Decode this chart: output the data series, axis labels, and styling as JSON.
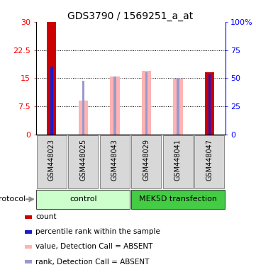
{
  "title": "GDS3790 / 1569251_a_at",
  "samples": [
    "GSM448023",
    "GSM448025",
    "GSM448043",
    "GSM448029",
    "GSM448041",
    "GSM448047"
  ],
  "value_bars": [
    30.0,
    9.0,
    15.5,
    17.0,
    14.8,
    16.5
  ],
  "rank_bars": [
    18.0,
    14.3,
    15.5,
    16.5,
    15.0,
    16.0
  ],
  "bar_colors_value": [
    "#cc0000",
    "#ffb3b3",
    "#ffb3b3",
    "#ffb3b3",
    "#ffb3b3",
    "#cc0000"
  ],
  "bar_colors_rank": [
    "#1a1acc",
    "#9999cc",
    "#9999cc",
    "#9999cc",
    "#9999cc",
    "#1a1acc"
  ],
  "is_present": [
    true,
    false,
    false,
    false,
    false,
    true
  ],
  "ylim_left": [
    0,
    30
  ],
  "ylim_right": [
    0,
    100
  ],
  "yticks_left": [
    0,
    7.5,
    15,
    22.5,
    30
  ],
  "ytick_labels_left": [
    "0",
    "7.5",
    "15",
    "22.5",
    "30"
  ],
  "yticks_right": [
    0,
    25,
    50,
    75,
    100
  ],
  "ytick_labels_right": [
    "0",
    "25",
    "50",
    "75",
    "100%"
  ],
  "n_control": 3,
  "n_transfection": 3,
  "group_label_control": "control",
  "group_label_mek": "MEK5D transfection",
  "group_color_control": "#ccffcc",
  "group_color_mek": "#44cc44",
  "protocol_label": "protocol",
  "legend_items": [
    {
      "color": "#cc0000",
      "label": "count"
    },
    {
      "color": "#1a1acc",
      "label": "percentile rank within the sample"
    },
    {
      "color": "#ffb3b3",
      "label": "value, Detection Call = ABSENT"
    },
    {
      "color": "#9999cc",
      "label": "rank, Detection Call = ABSENT"
    }
  ],
  "value_bar_width": 0.3,
  "rank_bar_width": 0.08,
  "title_fontsize": 10,
  "tick_fontsize": 8,
  "legend_fontsize": 7.5,
  "sample_label_fontsize": 7
}
